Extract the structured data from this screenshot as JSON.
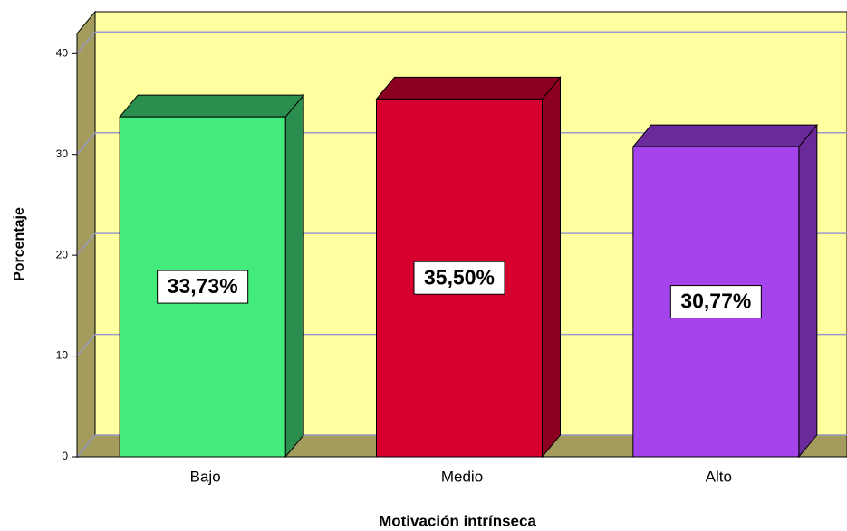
{
  "chart_data": {
    "type": "bar3d",
    "categories": [
      "Bajo",
      "Medio",
      "Alto"
    ],
    "values": [
      33.73,
      35.5,
      30.77
    ],
    "value_labels": [
      "33,73%",
      "35,50%",
      "30,77%"
    ],
    "colors": [
      "#42eb7c",
      "#d6002f",
      "#a543ed"
    ],
    "side_colors": [
      "#2a8f4e",
      "#8b0020",
      "#6b2a9a"
    ],
    "x_label": "Motivación intrínseca",
    "y_label": "Porcentaje",
    "ylim": [
      0,
      42
    ],
    "yticks": [
      0,
      10,
      20,
      30,
      40
    ],
    "grid": true
  }
}
